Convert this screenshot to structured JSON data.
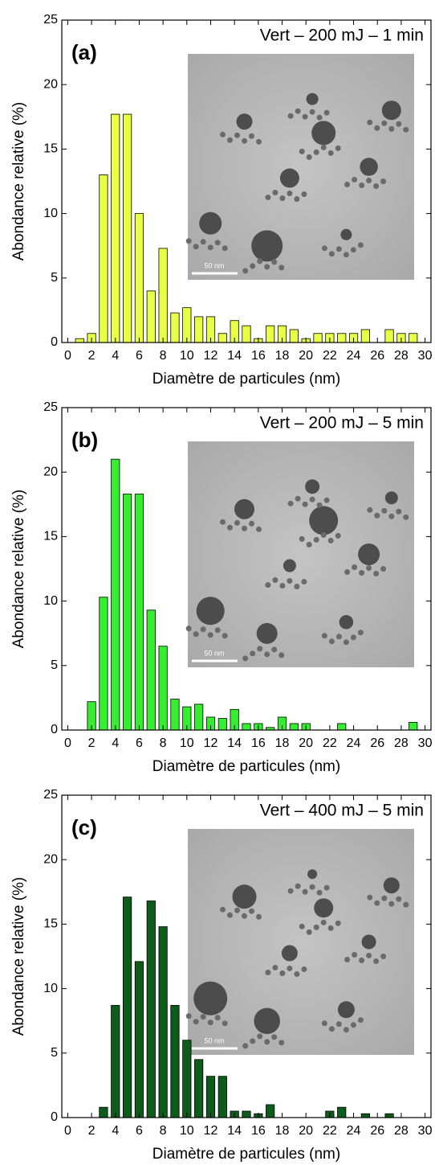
{
  "chart_data": [
    {
      "type": "bar",
      "panel_label": "(a)",
      "annotation": "Vert – 200 mJ – 1 min",
      "inset_scale": "50 nm",
      "xlabel": "Diamètre de particules (nm)",
      "ylabel": "Abondance relative (%)",
      "color": "#e8ff45",
      "x": [
        1,
        2,
        3,
        4,
        5,
        6,
        7,
        8,
        9,
        10,
        11,
        12,
        13,
        14,
        15,
        16,
        17,
        18,
        19,
        20,
        21,
        22,
        23,
        24,
        25,
        27,
        28,
        29
      ],
      "values": [
        0.3,
        0.7,
        13.0,
        17.7,
        17.7,
        10.0,
        4.0,
        7.3,
        2.3,
        2.7,
        2.0,
        2.0,
        0.7,
        1.7,
        1.3,
        0.3,
        1.3,
        1.3,
        1.0,
        0.3,
        0.7,
        0.7,
        0.7,
        0.7,
        1.0,
        1.0,
        0.7,
        0.7
      ],
      "xlim": [
        -0.5,
        30.5
      ],
      "xticks": [
        0,
        2,
        4,
        6,
        8,
        10,
        12,
        14,
        16,
        18,
        20,
        22,
        24,
        26,
        28,
        30
      ],
      "ylim": [
        0,
        25
      ],
      "yticks": [
        0,
        5,
        10,
        15,
        20,
        25
      ]
    },
    {
      "type": "bar",
      "panel_label": "(b)",
      "annotation": "Vert – 200 mJ – 5 min",
      "inset_scale": "50 nm",
      "xlabel": "Diamètre de particules (nm)",
      "ylabel": "Abondance relative (%)",
      "color": "#36ee30",
      "x": [
        2,
        3,
        4,
        5,
        6,
        7,
        8,
        9,
        10,
        11,
        12,
        13,
        14,
        15,
        16,
        17,
        18,
        19,
        20,
        23,
        29
      ],
      "values": [
        2.2,
        10.3,
        21.0,
        18.3,
        18.3,
        9.3,
        6.5,
        2.4,
        1.8,
        2.0,
        1.0,
        0.9,
        1.6,
        0.5,
        0.5,
        0.2,
        1.0,
        0.5,
        0.5,
        0.5,
        0.6
      ],
      "xlim": [
        -0.5,
        30.5
      ],
      "xticks": [
        0,
        2,
        4,
        6,
        8,
        10,
        12,
        14,
        16,
        18,
        20,
        22,
        24,
        26,
        28,
        30
      ],
      "ylim": [
        0,
        25
      ],
      "yticks": [
        0,
        5,
        10,
        15,
        20,
        25
      ]
    },
    {
      "type": "bar",
      "panel_label": "(c)",
      "annotation": "Vert – 400 mJ – 5 min",
      "inset_scale": "50 nm",
      "xlabel": "Diamètre de particules (nm)",
      "ylabel": "Abondance relative (%)",
      "color": "#0d5c1c",
      "x": [
        3,
        4,
        5,
        6,
        7,
        8,
        9,
        10,
        11,
        12,
        13,
        14,
        15,
        16,
        17,
        22,
        23,
        25,
        27
      ],
      "values": [
        0.8,
        8.7,
        17.1,
        12.1,
        16.8,
        14.8,
        8.7,
        6.0,
        4.5,
        3.2,
        3.2,
        0.5,
        0.5,
        0.3,
        1.0,
        0.5,
        0.8,
        0.3,
        0.3
      ],
      "xlim": [
        -0.5,
        30.5
      ],
      "xticks": [
        0,
        2,
        4,
        6,
        8,
        10,
        12,
        14,
        16,
        18,
        20,
        22,
        24,
        26,
        28,
        30
      ],
      "ylim": [
        0,
        25
      ],
      "yticks": [
        0,
        5,
        10,
        15,
        20,
        25
      ]
    }
  ]
}
